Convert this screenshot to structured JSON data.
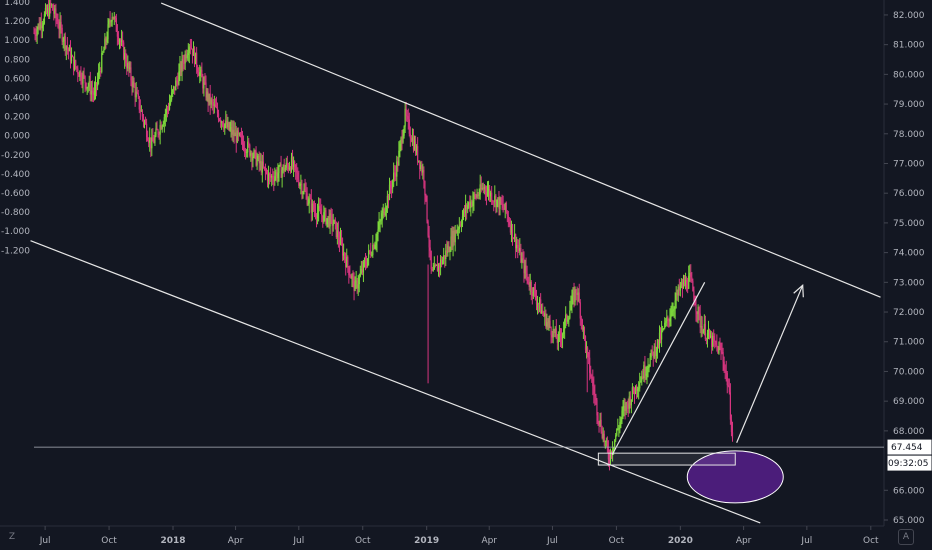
{
  "chart_data": {
    "type": "candlestick",
    "left_axis": {
      "ticks": [
        1.4,
        1.2,
        1.0,
        0.8,
        0.6,
        0.4,
        0.2,
        0.0,
        -0.2,
        -0.4,
        -0.6,
        -0.8,
        -1.0,
        -1.2
      ],
      "tick_labels": [
        "1.400",
        "1.200",
        "1.000",
        "0.800",
        "0.600",
        "0.400",
        "0.200",
        "0.000",
        "-0.200",
        "-0.400",
        "-0.600",
        "-0.800",
        "-1.000",
        "-1.200"
      ]
    },
    "right_axis": {
      "ticks": [
        82,
        81,
        80,
        79,
        78,
        77,
        76,
        75,
        74,
        73,
        72,
        71,
        70,
        69,
        68,
        66,
        65
      ],
      "tick_labels": [
        "82.000",
        "81.000",
        "80.000",
        "79.000",
        "78.000",
        "77.000",
        "76.000",
        "75.000",
        "74.000",
        "73.000",
        "72.000",
        "71.000",
        "70.000",
        "69.000",
        "68.000",
        "66.000",
        "65.000"
      ],
      "range": [
        65.0,
        82.2
      ]
    },
    "x_axis": {
      "tick_labels": [
        "Jul",
        "Oct",
        "2018",
        "Apr",
        "Jul",
        "Oct",
        "2019",
        "Apr",
        "Jul",
        "Oct",
        "2020",
        "Apr",
        "Jul",
        "Oct"
      ],
      "bold": [
        "2018",
        "2019",
        "2020"
      ],
      "start": "2017-06-15",
      "end": "2020-10-20"
    },
    "series": [
      {
        "values": [
          {
            "date": "2017-06-15",
            "price": 81.4
          },
          {
            "date": "2017-07-10",
            "price": 82.3
          },
          {
            "date": "2017-08-10",
            "price": 80.4
          },
          {
            "date": "2017-09-10",
            "price": 79.3
          },
          {
            "date": "2017-10-05",
            "price": 82.1
          },
          {
            "date": "2017-11-05",
            "price": 79.6
          },
          {
            "date": "2017-12-01",
            "price": 77.6
          },
          {
            "date": "2017-12-25",
            "price": 78.9
          },
          {
            "date": "2018-01-25",
            "price": 81.1
          },
          {
            "date": "2018-02-20",
            "price": 79.2
          },
          {
            "date": "2018-03-20",
            "price": 78.2
          },
          {
            "date": "2018-04-20",
            "price": 77.5
          },
          {
            "date": "2018-05-20",
            "price": 76.5
          },
          {
            "date": "2018-06-20",
            "price": 77.0
          },
          {
            "date": "2018-07-20",
            "price": 75.5
          },
          {
            "date": "2018-08-20",
            "price": 75.0
          },
          {
            "date": "2018-09-20",
            "price": 72.8
          },
          {
            "date": "2018-10-20",
            "price": 74.5
          },
          {
            "date": "2018-11-20",
            "price": 77.0
          },
          {
            "date": "2018-12-01",
            "price": 78.6
          },
          {
            "date": "2018-12-28",
            "price": 76.6
          },
          {
            "date": "2019-01-08",
            "price": 73.2
          },
          {
            "date": "2019-01-25",
            "price": 73.8
          },
          {
            "date": "2019-03-01",
            "price": 75.6
          },
          {
            "date": "2019-03-25",
            "price": 76.2
          },
          {
            "date": "2019-04-25",
            "price": 75.4
          },
          {
            "date": "2019-05-25",
            "price": 73.2
          },
          {
            "date": "2019-06-20",
            "price": 71.8
          },
          {
            "date": "2019-07-10",
            "price": 71.0
          },
          {
            "date": "2019-08-05",
            "price": 72.8
          },
          {
            "date": "2019-08-20",
            "price": 70.5
          },
          {
            "date": "2019-09-05",
            "price": 68.5
          },
          {
            "date": "2019-09-20",
            "price": 67.1
          },
          {
            "date": "2019-10-10",
            "price": 68.6
          },
          {
            "date": "2019-11-05",
            "price": 69.8
          },
          {
            "date": "2019-12-01",
            "price": 71.0
          },
          {
            "date": "2020-01-01",
            "price": 72.8
          },
          {
            "date": "2020-01-15",
            "price": 73.1
          },
          {
            "date": "2020-01-30",
            "price": 71.6
          },
          {
            "date": "2020-02-15",
            "price": 71.0
          },
          {
            "date": "2020-03-01",
            "price": 70.6
          },
          {
            "date": "2020-03-10",
            "price": 69.5
          },
          {
            "date": "2020-03-17",
            "price": 67.45
          }
        ]
      }
    ],
    "current_price": {
      "value": 67.454,
      "label": "67.454",
      "timer": "09:32:05"
    },
    "annotations": {
      "channel_top": [
        {
          "date": "2017-12-15",
          "price": 82.4
        },
        {
          "date": "2020-10-15",
          "price": 72.5
        }
      ],
      "channel_bottom": [
        {
          "date": "2017-06-10",
          "price": 74.4
        },
        {
          "date": "2020-04-25",
          "price": 64.9
        }
      ],
      "trend_line": [
        {
          "date": "2019-09-25",
          "price": 67.2
        },
        {
          "date": "2020-02-05",
          "price": 73.0
        }
      ],
      "rectangle": [
        {
          "date": "2019-09-05",
          "price": 67.25
        },
        {
          "date": "2020-03-20",
          "price": 66.85
        }
      ],
      "ellipse": {
        "center": {
          "date": "2020-03-20",
          "price": 66.45
        },
        "color": "#4b1d7a"
      },
      "arrow": [
        {
          "date": "2020-03-22",
          "price": 67.6
        },
        {
          "date": "2020-06-25",
          "price": 72.9
        }
      ]
    },
    "colors": {
      "up": "#7dd93b",
      "down": "#d6357f",
      "background": "#131722",
      "lines": "#e6e6e6"
    },
    "grid": false
  },
  "corner": {
    "left_label": "Z",
    "right_label": "A"
  }
}
